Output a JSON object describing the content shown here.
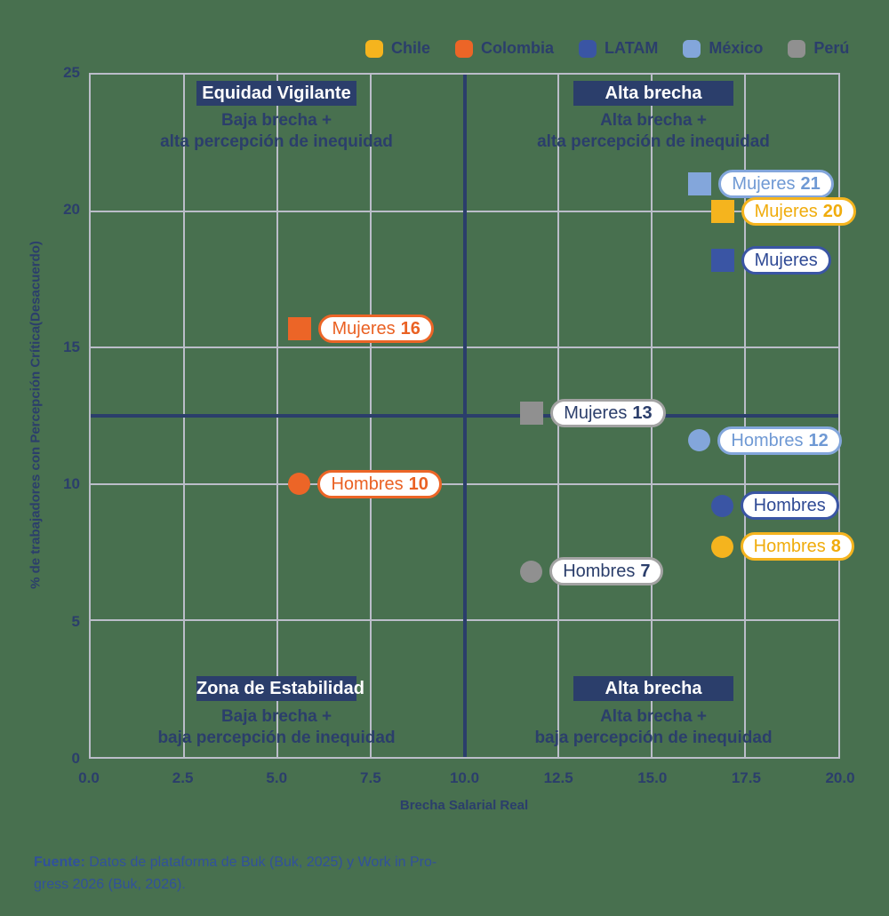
{
  "colors": {
    "background": "#48704F",
    "navy": "#2B3E6B",
    "gridline": "#BBBDC9",
    "pill_fill": "#FFFFFF",
    "footer_text": "#31519B"
  },
  "legend": {
    "items": [
      {
        "label": "Chile",
        "color": "#F5B41E"
      },
      {
        "label": "Colombia",
        "color": "#EC6527"
      },
      {
        "label": "LATAM",
        "color": "#3A55A4"
      },
      {
        "label": "México",
        "color": "#83A6DB"
      },
      {
        "label": "Perú",
        "color": "#909090"
      }
    ]
  },
  "quadrants": {
    "top_left": {
      "title": "Equidad Vigilante",
      "line1": "Baja brecha +",
      "line2": "alta percepción de inequidad"
    },
    "top_right": {
      "title": "Alta brecha",
      "line1": "Alta brecha +",
      "line2": "alta percepción de inequidad"
    },
    "bottom_left": {
      "title": "Zona de Estabilidad",
      "line1": "Baja brecha +",
      "line2": "baja percepción de inequidad"
    },
    "bottom_right": {
      "title": "Alta brecha",
      "line1": "Alta brecha +",
      "line2": "baja percepción de inequidad"
    }
  },
  "axes": {
    "x": {
      "label": "Brecha Salarial Real",
      "ticks": [
        "0.0",
        "2.5",
        "5.0",
        "7.5",
        "10.0",
        "12.5",
        "15.0",
        "17.5",
        "20.0"
      ]
    },
    "y": {
      "label": "% de trabajadores con Percepción Crítica(Desacuerdo)",
      "ticks": [
        "25",
        "20",
        "15",
        "10",
        "5",
        "0"
      ]
    }
  },
  "gridlines": {
    "x": [
      2.5,
      5,
      7.5,
      12.5,
      15,
      17.5
    ],
    "y": [
      5,
      10,
      15,
      20
    ]
  },
  "reference_lines": {
    "x": 10,
    "y": 12.5,
    "color": "#2B3E6B"
  },
  "chart_data": {
    "type": "scatter",
    "title": "",
    "xlabel": "Brecha Salarial Real",
    "ylabel": "% de trabajadores con Percepción Crítica(Desacuerdo)",
    "xlim": [
      0,
      20
    ],
    "ylim": [
      0,
      25
    ],
    "grid": true,
    "legend_position": "top",
    "points": [
      {
        "country": "México",
        "group": "Mujeres",
        "x": 16.3,
        "y": 21.0,
        "marker": "square",
        "color": "#83A6DB",
        "text_color": "#6F99D4",
        "label": "Mujeres",
        "value": "21"
      },
      {
        "country": "Chile",
        "group": "Mujeres",
        "x": 16.9,
        "y": 20.0,
        "marker": "square",
        "color": "#F5B41E",
        "text_color": "#F0AC0C",
        "label": "Mujeres",
        "value": "20"
      },
      {
        "country": "LATAM",
        "group": "Mujeres",
        "x": 16.9,
        "y": 18.2,
        "marker": "square",
        "color": "#3A55A4",
        "text_color": "#2F4A95",
        "label": "Mujeres",
        "value": ""
      },
      {
        "country": "Colombia",
        "group": "Mujeres",
        "x": 5.6,
        "y": 15.7,
        "marker": "square",
        "color": "#EC6527",
        "text_color": "#EA6123",
        "label": "Mujeres",
        "value": "16"
      },
      {
        "country": "Perú",
        "group": "Mujeres",
        "x": 11.8,
        "y": 12.6,
        "marker": "square",
        "color": "#909090",
        "text_color": "#2B3E6B",
        "border_color": "#A3A3A3",
        "label": "Mujeres",
        "value": "13"
      },
      {
        "country": "México",
        "group": "Hombres",
        "x": 16.3,
        "y": 11.6,
        "marker": "circle",
        "color": "#83A6DB",
        "text_color": "#6F99D4",
        "label": "Hombres",
        "value": "12"
      },
      {
        "country": "Colombia",
        "group": "Hombres",
        "x": 5.6,
        "y": 10.0,
        "marker": "circle",
        "color": "#EC6527",
        "text_color": "#EA6123",
        "label": "Hombres",
        "value": "10"
      },
      {
        "country": "LATAM",
        "group": "Hombres",
        "x": 16.9,
        "y": 9.2,
        "marker": "circle",
        "color": "#3A55A4",
        "text_color": "#2F4A95",
        "label": "Hombres",
        "value": ""
      },
      {
        "country": "Chile",
        "group": "Hombres",
        "x": 16.9,
        "y": 7.7,
        "marker": "circle",
        "color": "#F5B41E",
        "text_color": "#F0AC0C",
        "label": "Hombres",
        "value": "8"
      },
      {
        "country": "Perú",
        "group": "Hombres",
        "x": 11.8,
        "y": 6.8,
        "marker": "circle",
        "color": "#909090",
        "text_color": "#2B3E6B",
        "border_color": "#A3A3A3",
        "label": "Hombres",
        "value": "7"
      }
    ]
  },
  "footer": {
    "prefix": "Fuente:",
    "line1": "Datos de plataforma de Buk (Buk, 2025) y Work in Pro-",
    "line2": "gress 2026 (Buk, 2026)."
  }
}
